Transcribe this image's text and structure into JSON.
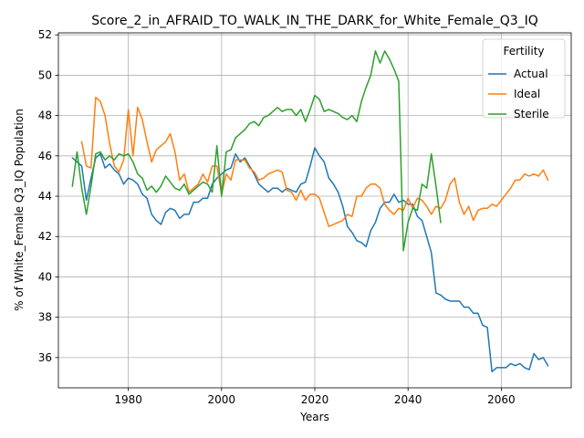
{
  "chart_data": {
    "type": "line",
    "title": "Score_2_in_AFRAID_TO_WALK_IN_THE_DARK_for_White_Female_Q3_IQ",
    "xlabel": "Years",
    "ylabel": "% of White_Female Q3_IQ Population",
    "xlim": [
      1965,
      2075
    ],
    "ylim": [
      34.5,
      52.1
    ],
    "xticks": [
      1980,
      2000,
      2020,
      2040,
      2060
    ],
    "yticks": [
      36,
      38,
      40,
      42,
      44,
      46,
      48,
      50,
      52
    ],
    "grid": true,
    "legend": {
      "title": "Fertility",
      "placement": "top-right"
    },
    "series": [
      {
        "name": "Actual",
        "color": "#1f77b4",
        "x": [
          1968,
          1969,
          1970,
          1971,
          1972,
          1973,
          1974,
          1975,
          1976,
          1977,
          1978,
          1979,
          1980,
          1981,
          1982,
          1983,
          1984,
          1985,
          1986,
          1987,
          1988,
          1989,
          1990,
          1991,
          1992,
          1993,
          1994,
          1995,
          1996,
          1997,
          1998,
          1999,
          2000,
          2001,
          2002,
          2003,
          2004,
          2005,
          2006,
          2007,
          2008,
          2009,
          2010,
          2011,
          2012,
          2013,
          2014,
          2015,
          2016,
          2017,
          2018,
          2019,
          2020,
          2021,
          2022,
          2023,
          2024,
          2025,
          2026,
          2027,
          2028,
          2029,
          2030,
          2031,
          2032,
          2033,
          2034,
          2035,
          2036,
          2037,
          2038,
          2039,
          2040,
          2041,
          2042,
          2043,
          2044,
          2045,
          2046,
          2047,
          2048,
          2049,
          2050,
          2051,
          2052,
          2053,
          2054,
          2055,
          2056,
          2057,
          2058,
          2059,
          2060,
          2061,
          2062,
          2063,
          2064,
          2065,
          2066,
          2067,
          2068,
          2069,
          2070
        ],
        "values": [
          45.9,
          45.7,
          45.5,
          43.8,
          44.9,
          45.9,
          46.1,
          45.4,
          45.6,
          45.3,
          45.1,
          44.6,
          44.9,
          44.8,
          44.6,
          44.1,
          43.9,
          43.1,
          42.8,
          42.6,
          43.2,
          43.4,
          43.3,
          42.9,
          43.1,
          43.1,
          43.7,
          43.7,
          43.9,
          43.9,
          44.6,
          44.9,
          45.1,
          45.3,
          45.4,
          46.1,
          45.7,
          45.9,
          45.5,
          45.1,
          44.6,
          44.4,
          44.2,
          44.4,
          44.4,
          44.2,
          44.4,
          44.3,
          44.2,
          44.6,
          44.7,
          45.5,
          46.4,
          46.0,
          45.7,
          44.9,
          44.6,
          44.2,
          43.5,
          42.5,
          42.2,
          41.8,
          41.7,
          41.5,
          42.3,
          42.7,
          43.4,
          43.7,
          43.7,
          44.1,
          43.7,
          43.8,
          43.6,
          43.6,
          43.0,
          42.8,
          42.0,
          41.2,
          39.2,
          39.1,
          38.9,
          38.8,
          38.8,
          38.8,
          38.5,
          38.5,
          38.2,
          38.2,
          37.6,
          37.5,
          35.3,
          35.5,
          35.5,
          35.5,
          35.7,
          35.6,
          35.7,
          35.5,
          35.4,
          36.2,
          35.9,
          36.0,
          35.6
        ]
      },
      {
        "name": "Ideal",
        "color": "#ff7f0e",
        "x": [
          1970,
          1971,
          1972,
          1973,
          1974,
          1975,
          1976,
          1977,
          1978,
          1979,
          1980,
          1981,
          1982,
          1983,
          1984,
          1985,
          1986,
          1987,
          1988,
          1989,
          1990,
          1991,
          1992,
          1993,
          1994,
          1995,
          1996,
          1997,
          1998,
          1999,
          2000,
          2001,
          2002,
          2003,
          2004,
          2005,
          2006,
          2007,
          2008,
          2009,
          2010,
          2011,
          2012,
          2013,
          2014,
          2015,
          2016,
          2017,
          2018,
          2019,
          2020,
          2021,
          2022,
          2023,
          2024,
          2025,
          2026,
          2027,
          2028,
          2029,
          2030,
          2031,
          2032,
          2033,
          2034,
          2035,
          2036,
          2037,
          2038,
          2039,
          2040,
          2041,
          2042,
          2043,
          2044,
          2045,
          2046,
          2047,
          2048,
          2049,
          2050,
          2051,
          2052,
          2053,
          2054,
          2055,
          2056,
          2057,
          2058,
          2059,
          2060,
          2061,
          2062,
          2063,
          2064,
          2065,
          2066,
          2067,
          2068,
          2069,
          2070
        ],
        "values": [
          46.7,
          45.5,
          45.4,
          48.9,
          48.7,
          48.0,
          46.6,
          45.5,
          45.2,
          45.8,
          48.3,
          46.0,
          48.4,
          47.8,
          46.7,
          45.7,
          46.3,
          46.5,
          46.7,
          47.1,
          46.2,
          44.8,
          45.1,
          44.2,
          44.4,
          44.6,
          45.1,
          44.7,
          45.5,
          45.5,
          44.1,
          45.1,
          44.8,
          45.8,
          45.8,
          45.8,
          45.4,
          45.2,
          44.8,
          44.9,
          45.1,
          45.2,
          45.3,
          45.2,
          44.3,
          44.2,
          43.8,
          44.3,
          43.8,
          44.1,
          44.1,
          43.9,
          43.2,
          42.5,
          42.6,
          42.7,
          42.8,
          43.1,
          43.0,
          44.0,
          44.0,
          44.4,
          44.6,
          44.6,
          44.4,
          43.6,
          43.3,
          43.1,
          43.4,
          43.3,
          43.9,
          43.4,
          43.9,
          43.8,
          43.5,
          43.1,
          43.5,
          43.4,
          43.8,
          44.6,
          44.9,
          43.7,
          43.1,
          43.5,
          42.8,
          43.3,
          43.4,
          43.4,
          43.6,
          43.5,
          43.8,
          44.1,
          44.4,
          44.8,
          44.8,
          45.1,
          45.0,
          45.1,
          45.0,
          45.3,
          44.8
        ]
      },
      {
        "name": "Sterile",
        "color": "#2ca02c",
        "x": [
          1968,
          1969,
          1970,
          1971,
          1972,
          1973,
          1974,
          1975,
          1976,
          1977,
          1978,
          1979,
          1980,
          1981,
          1982,
          1983,
          1984,
          1985,
          1986,
          1987,
          1988,
          1989,
          1990,
          1991,
          1992,
          1993,
          1994,
          1995,
          1996,
          1997,
          1998,
          1999,
          2000,
          2001,
          2002,
          2003,
          2004,
          2005,
          2006,
          2007,
          2008,
          2009,
          2010,
          2011,
          2012,
          2013,
          2014,
          2015,
          2016,
          2017,
          2018,
          2019,
          2020,
          2021,
          2022,
          2023,
          2024,
          2025,
          2026,
          2027,
          2028,
          2029,
          2030,
          2031,
          2032,
          2033,
          2034,
          2035,
          2036,
          2037,
          2038,
          2039,
          2040,
          2041,
          2042,
          2043,
          2044,
          2045,
          2046,
          2047
        ],
        "values": [
          44.5,
          46.2,
          44.4,
          43.1,
          44.5,
          46.1,
          46.2,
          45.8,
          46.0,
          45.8,
          46.1,
          46.0,
          46.1,
          45.7,
          45.1,
          44.9,
          44.3,
          44.5,
          44.2,
          44.5,
          45.0,
          44.7,
          44.4,
          44.3,
          44.6,
          44.1,
          44.3,
          44.5,
          44.7,
          44.6,
          44.2,
          46.5,
          44.0,
          46.2,
          46.3,
          46.9,
          47.1,
          47.3,
          47.6,
          47.7,
          47.5,
          47.9,
          48.0,
          48.2,
          48.4,
          48.2,
          48.3,
          48.3,
          48.0,
          48.3,
          47.7,
          48.3,
          49.0,
          48.8,
          48.2,
          48.3,
          48.2,
          48.1,
          47.9,
          47.8,
          48.0,
          47.7,
          48.7,
          49.4,
          50.0,
          51.2,
          50.6,
          51.2,
          50.8,
          50.3,
          49.7,
          41.3,
          42.7,
          43.4,
          43.3,
          44.6,
          44.4,
          46.1,
          44.5,
          42.7
        ]
      }
    ]
  }
}
